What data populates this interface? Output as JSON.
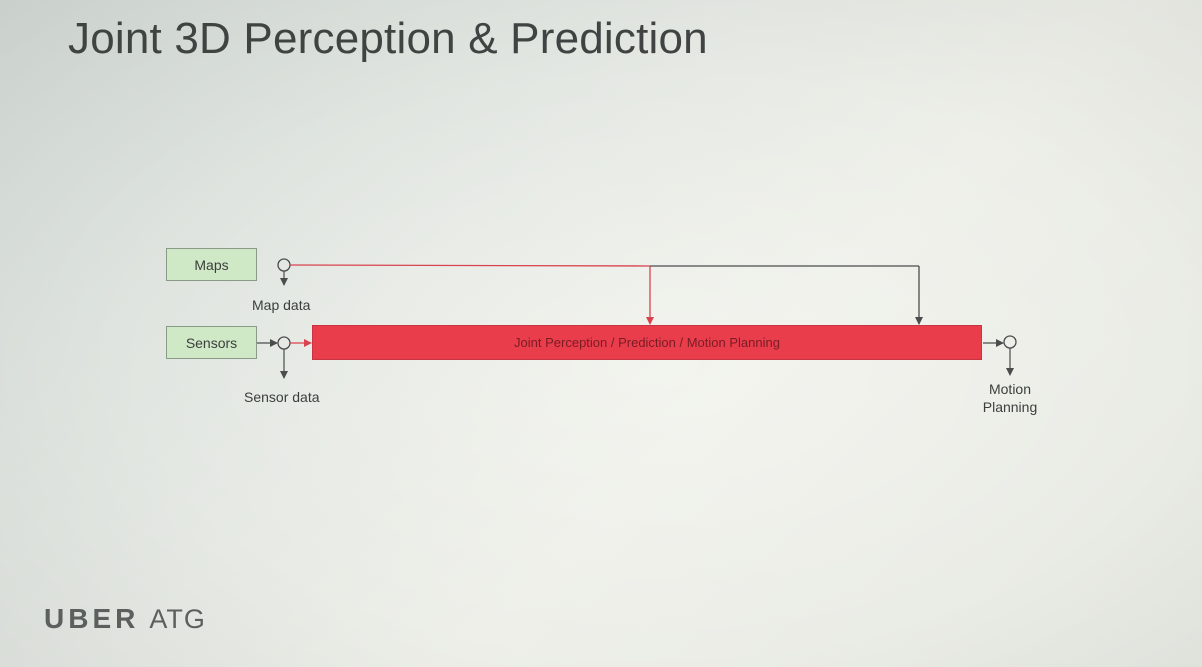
{
  "slide": {
    "title": "Joint 3D Perception & Prediction"
  },
  "diagram": {
    "inputs": [
      {
        "id": "maps",
        "label": "Maps",
        "output_label": "Map data"
      },
      {
        "id": "sensors",
        "label": "Sensors",
        "output_label": "Sensor data"
      }
    ],
    "process": {
      "label": "Joint Perception / Prediction / Motion Planning"
    },
    "output": {
      "label_line1": "Motion",
      "label_line2": "Planning"
    },
    "colors": {
      "input_box": "#cfe8c6",
      "process_bar": "#ea3d4c",
      "red_wire": "#d9434f",
      "dark_wire": "#4a4d4c"
    }
  },
  "footer": {
    "brand": "UBER",
    "division": "ATG"
  }
}
